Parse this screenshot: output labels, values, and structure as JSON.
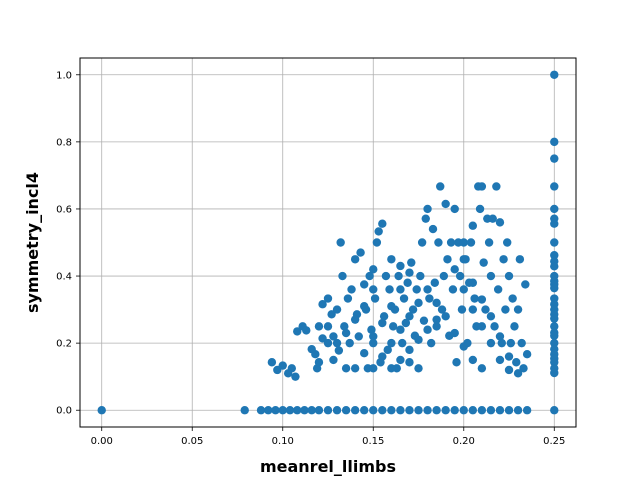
{
  "chart_data": {
    "type": "scatter",
    "title": "",
    "xlabel": "meanrel_llimbs",
    "ylabel": "symmetry_incl4",
    "xlim": [
      -0.012,
      0.262
    ],
    "ylim": [
      -0.05,
      1.05
    ],
    "xticks": [
      0.0,
      0.05,
      0.1,
      0.15,
      0.2,
      0.25
    ],
    "xtick_labels": [
      "0.00",
      "0.05",
      "0.10",
      "0.15",
      "0.20",
      "0.25"
    ],
    "yticks": [
      0.0,
      0.2,
      0.4,
      0.6,
      0.8,
      1.0
    ],
    "ytick_labels": [
      "0.0",
      "0.2",
      "0.4",
      "0.6",
      "0.8",
      "1.0"
    ],
    "grid": true,
    "point_color": "#1f77b4",
    "points": [
      [
        0.0,
        0.0
      ],
      [
        0.079,
        0.0
      ],
      [
        0.088,
        0.0
      ],
      [
        0.092,
        0.0
      ],
      [
        0.096,
        0.0
      ],
      [
        0.1,
        0.0
      ],
      [
        0.104,
        0.0
      ],
      [
        0.108,
        0.0
      ],
      [
        0.112,
        0.0
      ],
      [
        0.116,
        0.0
      ],
      [
        0.12,
        0.0
      ],
      [
        0.125,
        0.0
      ],
      [
        0.13,
        0.0
      ],
      [
        0.135,
        0.0
      ],
      [
        0.14,
        0.0
      ],
      [
        0.145,
        0.0
      ],
      [
        0.15,
        0.0
      ],
      [
        0.155,
        0.0
      ],
      [
        0.16,
        0.0
      ],
      [
        0.165,
        0.0
      ],
      [
        0.17,
        0.0
      ],
      [
        0.175,
        0.0
      ],
      [
        0.18,
        0.0
      ],
      [
        0.185,
        0.0
      ],
      [
        0.19,
        0.0
      ],
      [
        0.195,
        0.0
      ],
      [
        0.2,
        0.0
      ],
      [
        0.205,
        0.0
      ],
      [
        0.21,
        0.0
      ],
      [
        0.215,
        0.0
      ],
      [
        0.22,
        0.0
      ],
      [
        0.225,
        0.0
      ],
      [
        0.23,
        0.0
      ],
      [
        0.235,
        0.0
      ],
      [
        0.25,
        0.0
      ],
      [
        0.094,
        0.143
      ],
      [
        0.097,
        0.12
      ],
      [
        0.1,
        0.133
      ],
      [
        0.103,
        0.11
      ],
      [
        0.105,
        0.125
      ],
      [
        0.107,
        0.1
      ],
      [
        0.108,
        0.235
      ],
      [
        0.111,
        0.25
      ],
      [
        0.113,
        0.238
      ],
      [
        0.116,
        0.182
      ],
      [
        0.118,
        0.167
      ],
      [
        0.119,
        0.125
      ],
      [
        0.12,
        0.143
      ],
      [
        0.12,
        0.25
      ],
      [
        0.122,
        0.214
      ],
      [
        0.122,
        0.316
      ],
      [
        0.125,
        0.333
      ],
      [
        0.125,
        0.2
      ],
      [
        0.125,
        0.25
      ],
      [
        0.127,
        0.286
      ],
      [
        0.128,
        0.15
      ],
      [
        0.128,
        0.22
      ],
      [
        0.13,
        0.3
      ],
      [
        0.131,
        0.178
      ],
      [
        0.132,
        0.5
      ],
      [
        0.133,
        0.4
      ],
      [
        0.134,
        0.25
      ],
      [
        0.135,
        0.125
      ],
      [
        0.136,
        0.333
      ],
      [
        0.137,
        0.2
      ],
      [
        0.138,
        0.36
      ],
      [
        0.14,
        0.45
      ],
      [
        0.141,
        0.286
      ],
      [
        0.142,
        0.22
      ],
      [
        0.143,
        0.47
      ],
      [
        0.145,
        0.375
      ],
      [
        0.146,
        0.3
      ],
      [
        0.147,
        0.125
      ],
      [
        0.148,
        0.4
      ],
      [
        0.149,
        0.24
      ],
      [
        0.15,
        0.42
      ],
      [
        0.15,
        0.2
      ],
      [
        0.151,
        0.333
      ],
      [
        0.152,
        0.5
      ],
      [
        0.153,
        0.533
      ],
      [
        0.154,
        0.143
      ],
      [
        0.155,
        0.556
      ],
      [
        0.156,
        0.28
      ],
      [
        0.157,
        0.4
      ],
      [
        0.158,
        0.18
      ],
      [
        0.159,
        0.36
      ],
      [
        0.16,
        0.45
      ],
      [
        0.161,
        0.25
      ],
      [
        0.162,
        0.3
      ],
      [
        0.163,
        0.125
      ],
      [
        0.164,
        0.4
      ],
      [
        0.165,
        0.43
      ],
      [
        0.166,
        0.2
      ],
      [
        0.167,
        0.333
      ],
      [
        0.168,
        0.26
      ],
      [
        0.169,
        0.38
      ],
      [
        0.17,
        0.143
      ],
      [
        0.171,
        0.44
      ],
      [
        0.172,
        0.3
      ],
      [
        0.173,
        0.222
      ],
      [
        0.174,
        0.36
      ],
      [
        0.175,
        0.125
      ],
      [
        0.176,
        0.4
      ],
      [
        0.177,
        0.5
      ],
      [
        0.178,
        0.267
      ],
      [
        0.179,
        0.571
      ],
      [
        0.18,
        0.6
      ],
      [
        0.181,
        0.333
      ],
      [
        0.182,
        0.2
      ],
      [
        0.183,
        0.54
      ],
      [
        0.184,
        0.38
      ],
      [
        0.185,
        0.25
      ],
      [
        0.186,
        0.5
      ],
      [
        0.187,
        0.667
      ],
      [
        0.188,
        0.3
      ],
      [
        0.189,
        0.4
      ],
      [
        0.19,
        0.615
      ],
      [
        0.191,
        0.45
      ],
      [
        0.192,
        0.222
      ],
      [
        0.193,
        0.5
      ],
      [
        0.194,
        0.36
      ],
      [
        0.195,
        0.6
      ],
      [
        0.196,
        0.143
      ],
      [
        0.197,
        0.5
      ],
      [
        0.198,
        0.4
      ],
      [
        0.199,
        0.3
      ],
      [
        0.2,
        0.5
      ],
      [
        0.201,
        0.45
      ],
      [
        0.202,
        0.2
      ],
      [
        0.203,
        0.38
      ],
      [
        0.204,
        0.5
      ],
      [
        0.205,
        0.55
      ],
      [
        0.206,
        0.333
      ],
      [
        0.207,
        0.25
      ],
      [
        0.208,
        0.667
      ],
      [
        0.209,
        0.6
      ],
      [
        0.21,
        0.667
      ],
      [
        0.211,
        0.44
      ],
      [
        0.212,
        0.3
      ],
      [
        0.213,
        0.571
      ],
      [
        0.214,
        0.5
      ],
      [
        0.215,
        0.4
      ],
      [
        0.216,
        0.571
      ],
      [
        0.217,
        0.25
      ],
      [
        0.218,
        0.667
      ],
      [
        0.219,
        0.36
      ],
      [
        0.22,
        0.56
      ],
      [
        0.221,
        0.2
      ],
      [
        0.222,
        0.45
      ],
      [
        0.223,
        0.3
      ],
      [
        0.224,
        0.5
      ],
      [
        0.225,
        0.4
      ],
      [
        0.226,
        0.2
      ],
      [
        0.227,
        0.333
      ],
      [
        0.228,
        0.25
      ],
      [
        0.229,
        0.143
      ],
      [
        0.23,
        0.3
      ],
      [
        0.231,
        0.45
      ],
      [
        0.232,
        0.2
      ],
      [
        0.233,
        0.125
      ],
      [
        0.234,
        0.375
      ],
      [
        0.235,
        0.167
      ],
      [
        0.2,
        0.45
      ],
      [
        0.205,
        0.38
      ],
      [
        0.21,
        0.33
      ],
      [
        0.215,
        0.28
      ],
      [
        0.22,
        0.22
      ],
      [
        0.225,
        0.16
      ],
      [
        0.23,
        0.11
      ],
      [
        0.195,
        0.42
      ],
      [
        0.2,
        0.36
      ],
      [
        0.205,
        0.3
      ],
      [
        0.21,
        0.25
      ],
      [
        0.215,
        0.2
      ],
      [
        0.22,
        0.15
      ],
      [
        0.225,
        0.12
      ],
      [
        0.185,
        0.32
      ],
      [
        0.19,
        0.28
      ],
      [
        0.195,
        0.23
      ],
      [
        0.2,
        0.19
      ],
      [
        0.205,
        0.15
      ],
      [
        0.21,
        0.125
      ],
      [
        0.14,
        0.125
      ],
      [
        0.145,
        0.17
      ],
      [
        0.15,
        0.22
      ],
      [
        0.155,
        0.26
      ],
      [
        0.16,
        0.31
      ],
      [
        0.165,
        0.36
      ],
      [
        0.17,
        0.41
      ],
      [
        0.15,
        0.125
      ],
      [
        0.155,
        0.16
      ],
      [
        0.16,
        0.2
      ],
      [
        0.165,
        0.24
      ],
      [
        0.17,
        0.28
      ],
      [
        0.175,
        0.32
      ],
      [
        0.18,
        0.36
      ],
      [
        0.16,
        0.125
      ],
      [
        0.165,
        0.15
      ],
      [
        0.17,
        0.18
      ],
      [
        0.175,
        0.21
      ],
      [
        0.18,
        0.24
      ],
      [
        0.185,
        0.27
      ],
      [
        0.13,
        0.2
      ],
      [
        0.135,
        0.23
      ],
      [
        0.14,
        0.27
      ],
      [
        0.145,
        0.31
      ],
      [
        0.15,
        0.36
      ],
      [
        0.25,
        1.0
      ],
      [
        0.25,
        0.8
      ],
      [
        0.25,
        0.75
      ],
      [
        0.25,
        0.667
      ],
      [
        0.25,
        0.6
      ],
      [
        0.25,
        0.571
      ],
      [
        0.25,
        0.556
      ],
      [
        0.25,
        0.5
      ],
      [
        0.25,
        0.462
      ],
      [
        0.25,
        0.444
      ],
      [
        0.25,
        0.429
      ],
      [
        0.25,
        0.4
      ],
      [
        0.25,
        0.385
      ],
      [
        0.25,
        0.375
      ],
      [
        0.25,
        0.364
      ],
      [
        0.25,
        0.333
      ],
      [
        0.25,
        0.316
      ],
      [
        0.25,
        0.3
      ],
      [
        0.25,
        0.286
      ],
      [
        0.25,
        0.273
      ],
      [
        0.25,
        0.25
      ],
      [
        0.25,
        0.231
      ],
      [
        0.25,
        0.222
      ],
      [
        0.25,
        0.2
      ],
      [
        0.25,
        0.182
      ],
      [
        0.25,
        0.167
      ],
      [
        0.25,
        0.154
      ],
      [
        0.25,
        0.143
      ],
      [
        0.25,
        0.125
      ],
      [
        0.25,
        0.111
      ]
    ]
  }
}
